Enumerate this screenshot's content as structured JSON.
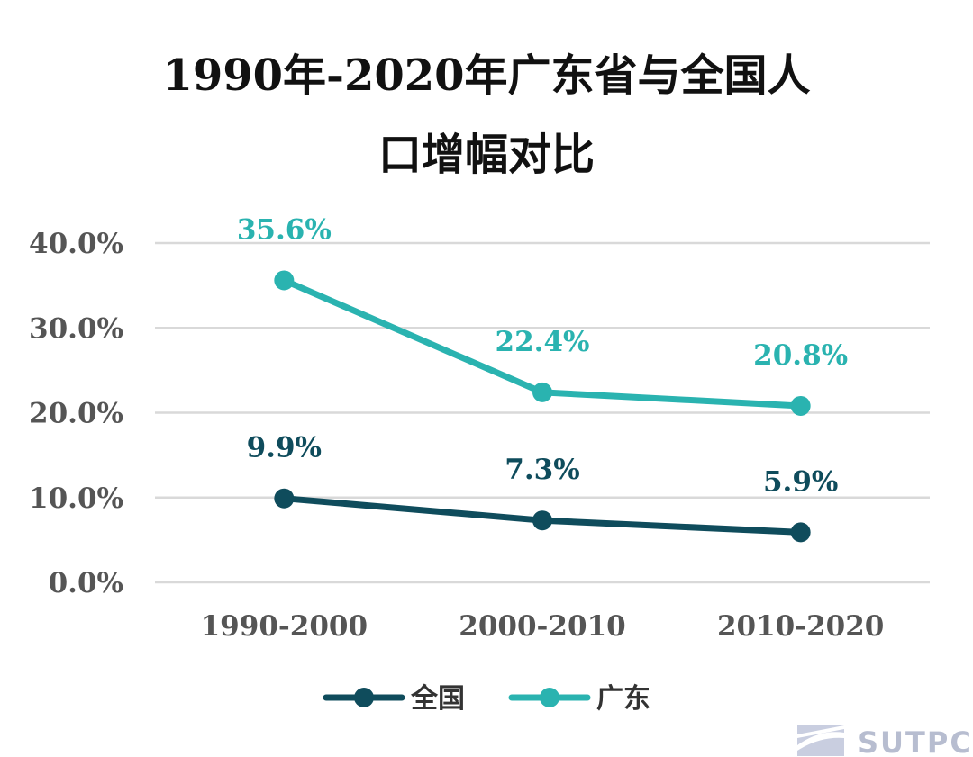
{
  "chart_data": {
    "type": "line",
    "title_lines": [
      "1990年-2020年广东省与全国人",
      "口增幅对比"
    ],
    "categories": [
      "1990-2000",
      "2000-2010",
      "2010-2020"
    ],
    "ylim": [
      0,
      40
    ],
    "yticks": [
      "0.0%",
      "10.0%",
      "20.0%",
      "30.0%",
      "40.0%"
    ],
    "grid": true,
    "legend_position": "bottom",
    "series": [
      {
        "name": "全国",
        "values": [
          9.9,
          7.3,
          5.9
        ],
        "labels": [
          "9.9%",
          "7.3%",
          "5.9%"
        ],
        "color": "#0f4c5c"
      },
      {
        "name": "广东",
        "values": [
          35.6,
          22.4,
          20.8
        ],
        "labels": [
          "35.6%",
          "22.4%",
          "20.8%"
        ],
        "color": "#2ab3b0"
      }
    ]
  },
  "watermark": {
    "text": "SUTPC",
    "icon": "sutpc-logo-icon"
  }
}
